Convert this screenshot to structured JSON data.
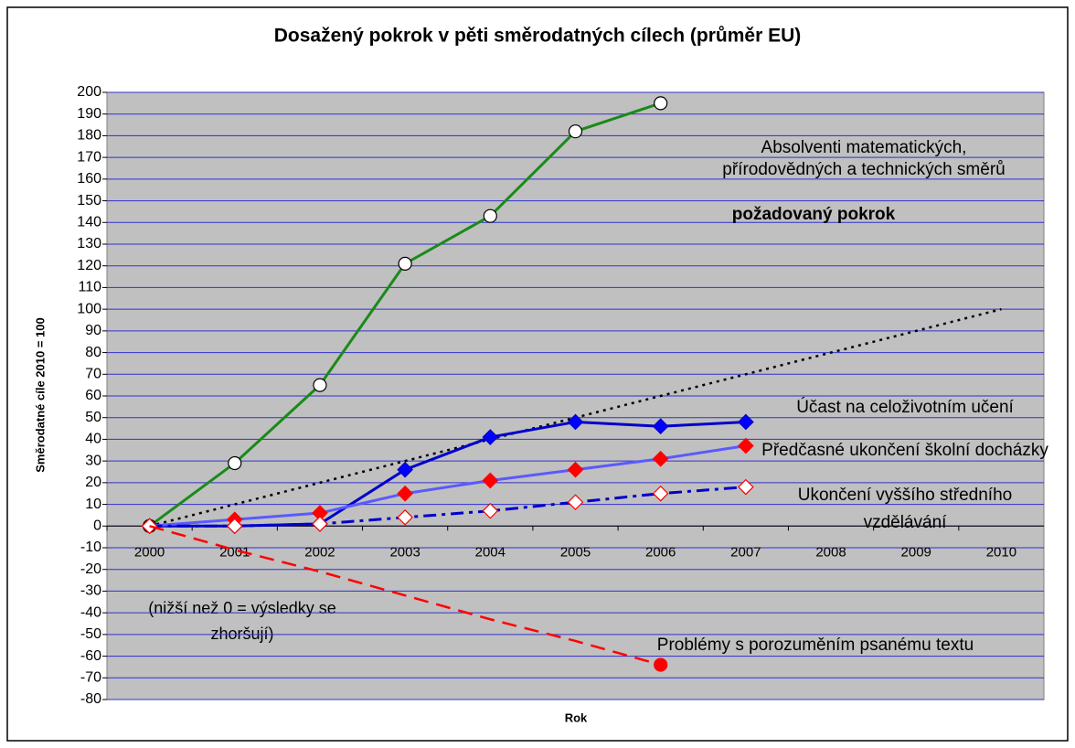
{
  "chart_data": {
    "type": "line",
    "title": "Dosažený pokrok v pěti směrodatných cílech (průměr EU)",
    "x_label": "Rok",
    "y_label": "Směrodatné cíle 2010 = 100",
    "categories": [
      "2000",
      "2001",
      "2002",
      "2003",
      "2004",
      "2005",
      "2006",
      "2007",
      "2008",
      "2009",
      "2010"
    ],
    "ylim": [
      -80,
      200
    ],
    "yticks": [
      -80,
      -70,
      -60,
      -50,
      -40,
      -30,
      -20,
      -10,
      0,
      10,
      20,
      30,
      40,
      50,
      60,
      70,
      80,
      90,
      100,
      110,
      120,
      130,
      140,
      150,
      160,
      170,
      180,
      190,
      200
    ],
    "grid": true,
    "annotations": [
      "(nižší než 0 = výsledky se",
      "zhoršují)"
    ],
    "series": [
      {
        "label": [
          "požadovaný pokrok"
        ],
        "color": "#000000",
        "dash": "dotted",
        "marker": "none",
        "values": [
          0,
          10,
          20,
          30,
          40,
          50,
          60,
          70,
          80,
          90,
          100
        ]
      },
      {
        "label": [
          "Absolventi matematických,",
          "přírodovědných a technických směrů"
        ],
        "color": "#1a8a1a",
        "dash": "solid",
        "marker": "circle",
        "marker_fill": "#ffffff",
        "marker_stroke": "#000000",
        "values": [
          0,
          29,
          65,
          121,
          143,
          182,
          195,
          null,
          null,
          null,
          null
        ]
      },
      {
        "label": [
          "Účast na celoživotním učení"
        ],
        "color": "#0000cc",
        "dash": "solid",
        "marker": "diamond",
        "marker_fill": "#0000ff",
        "marker_stroke": "#0000cc",
        "values": [
          0,
          0,
          1,
          26,
          41,
          48,
          46,
          48,
          null,
          null,
          null
        ]
      },
      {
        "label": [
          "Předčasné ukončení školní docházky"
        ],
        "color": "#5a5aff",
        "dash": "solid",
        "marker": "diamond",
        "marker_fill": "#ff0000",
        "marker_stroke": "#ff0000",
        "values": [
          0,
          3,
          6,
          15,
          21,
          26,
          31,
          37,
          null,
          null,
          null
        ]
      },
      {
        "label": [
          "Ukončení vyššího středního",
          "vzdělávání"
        ],
        "color": "#0000cc",
        "dash": "dashdot",
        "marker": "diamond",
        "marker_fill": "#ffffff",
        "marker_stroke": "#ff0000",
        "values": [
          0,
          0,
          1,
          4,
          7,
          11,
          15,
          18,
          null,
          null,
          null
        ]
      },
      {
        "label": [
          "Problémy s porozuměním psanému textu"
        ],
        "color": "#ff0000",
        "dash": "dashed",
        "marker": "end-circle",
        "marker_fill": "#ff0000",
        "marker_stroke": "#ff0000",
        "values": [
          0,
          -11,
          -21,
          -32,
          -43,
          -53,
          -64,
          null,
          null,
          null,
          null
        ]
      }
    ]
  }
}
